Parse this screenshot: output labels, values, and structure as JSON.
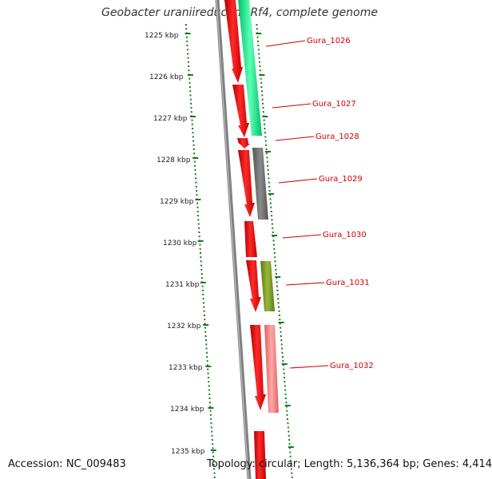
{
  "title": "Geobacter uraniireducens Rf4, complete genome",
  "accession": "Accession: NC_009483",
  "topology_info": "Topology: circular; Length: 5,136,364 bp; Genes: 4,414",
  "ticks": [
    {
      "label": "1225 kbp"
    },
    {
      "label": "1226 kbp"
    },
    {
      "label": "1227 kbp"
    },
    {
      "label": "1228 kbp"
    },
    {
      "label": "1229 kbp"
    },
    {
      "label": "1230 kbp"
    },
    {
      "label": "1231 kbp"
    },
    {
      "label": "1232 kbp"
    },
    {
      "label": "1233 kbp"
    },
    {
      "label": "1234 kbp"
    },
    {
      "label": "1235 kbp"
    }
  ],
  "genes": [
    {
      "label": "Gura_1026",
      "cog_color": "#00e676"
    },
    {
      "label": "Gura_1027",
      "cog_color": "#00e676"
    },
    {
      "label": "Gura_1028",
      "cog_color": "#ff0000"
    },
    {
      "label": "Gura_1029",
      "cog_color": "#666666"
    },
    {
      "label": "Gura_1030",
      "cog_color": "#ff0000"
    },
    {
      "label": "Gura_1031",
      "cog_color": "#6b8e23"
    },
    {
      "label": "Gura_1032",
      "cog_color": "#f08080"
    }
  ],
  "colors": {
    "strand": "#ff0000",
    "backbone": "#808080",
    "tick_marks": "#1a7a1a",
    "label_text": "#cc0000"
  }
}
